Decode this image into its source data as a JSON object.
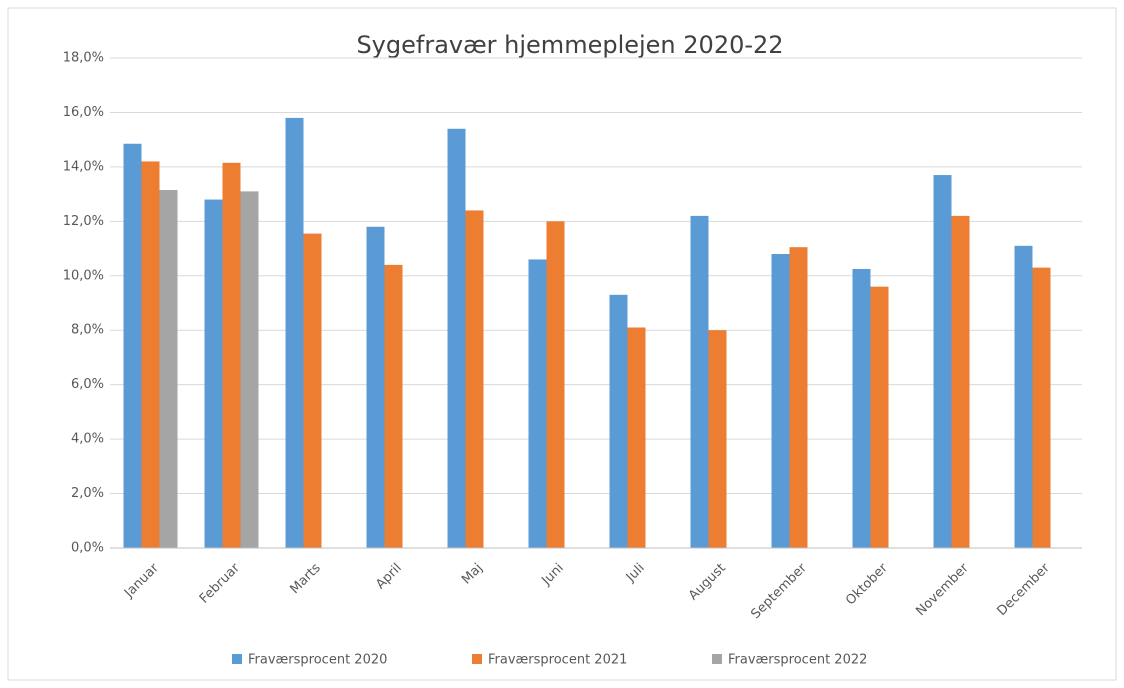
{
  "chart_data": {
    "type": "bar",
    "title": "Sygefravær hjemmeplejen 2020-22",
    "categories": [
      "Januar",
      "Februar",
      "Marts",
      "April",
      "Maj",
      "Juni",
      "Juli",
      "August",
      "September",
      "Oktober",
      "November",
      "December"
    ],
    "series": [
      {
        "name": "Fraværsprocent 2020",
        "color": "#5b9bd5",
        "values": [
          14.85,
          12.8,
          15.8,
          11.8,
          15.4,
          10.6,
          9.3,
          12.2,
          10.8,
          10.25,
          13.7,
          11.1
        ]
      },
      {
        "name": "Fraværsprocent 2021",
        "color": "#ed7d31",
        "values": [
          14.2,
          14.15,
          11.55,
          10.4,
          12.4,
          12.0,
          8.1,
          8.0,
          11.05,
          9.6,
          12.2,
          10.3
        ]
      },
      {
        "name": "Fraværsprocent 2022",
        "color": "#a5a5a5",
        "values": [
          13.15,
          13.1,
          null,
          null,
          null,
          null,
          null,
          null,
          null,
          null,
          null,
          null
        ]
      }
    ],
    "ylim": [
      0,
      18
    ],
    "yticks": [
      {
        "value": 0,
        "label": "0,0%"
      },
      {
        "value": 2,
        "label": "2,0%"
      },
      {
        "value": 4,
        "label": "4,0%"
      },
      {
        "value": 6,
        "label": "6,0%"
      },
      {
        "value": 8,
        "label": "8,0%"
      },
      {
        "value": 10,
        "label": "10,0%"
      },
      {
        "value": 12,
        "label": "12,0%"
      },
      {
        "value": 14,
        "label": "14,0%"
      },
      {
        "value": 16,
        "label": "16,0%"
      },
      {
        "value": 18,
        "label": "18,0%"
      }
    ],
    "grid": true,
    "legend": "bottom"
  }
}
